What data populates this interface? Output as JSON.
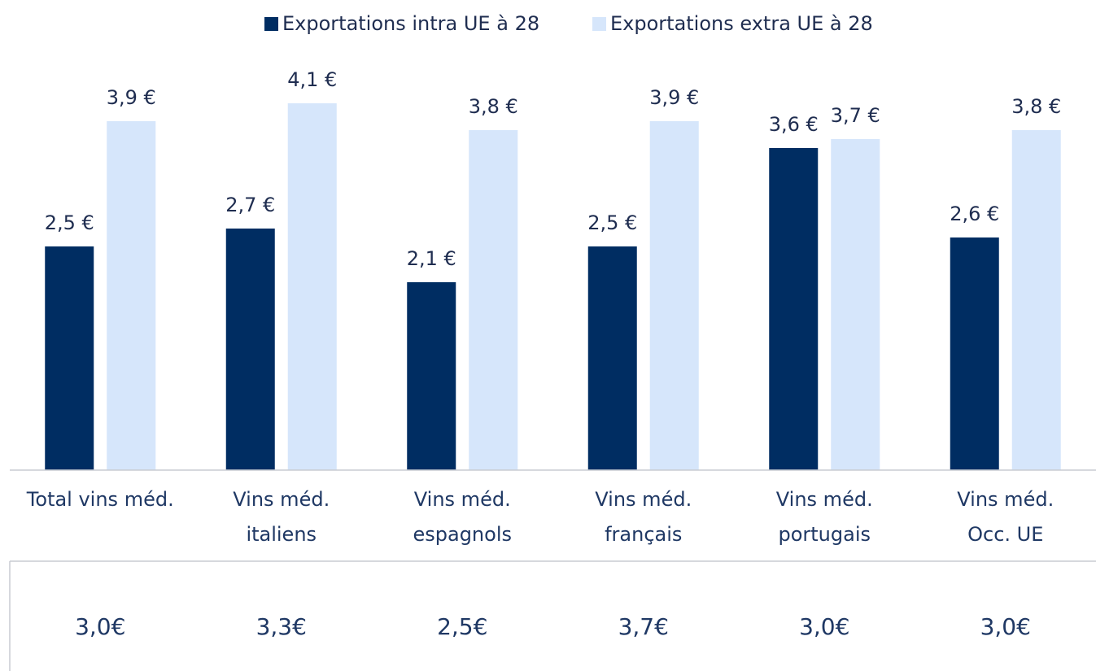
{
  "chart_data": {
    "type": "bar",
    "categories": [
      "Total vins méd.",
      "Vins méd.\nitaliens",
      "Vins méd.\nespagnols",
      "Vins méd.\nfrançais",
      "Vins méd.\nportugais",
      "Vins méd.\nOcc. UE"
    ],
    "series": [
      {
        "name": "Exportations intra UE à 28",
        "color": "#002d62",
        "values": [
          2.5,
          2.7,
          2.1,
          2.5,
          3.6,
          2.6
        ],
        "value_labels": [
          "2,5 €",
          "2,7 €",
          "2,1 €",
          "2,5 €",
          "3,6 €",
          "2,6 €"
        ]
      },
      {
        "name": "Exportations extra UE à 28",
        "color": "#d6e6fb",
        "values": [
          3.9,
          4.1,
          3.8,
          3.9,
          3.7,
          3.8
        ],
        "value_labels": [
          "3,9 €",
          "4,1 €",
          "3,8 €",
          "3,9 €",
          "3,7 €",
          "3,8 €"
        ]
      }
    ],
    "ylim": [
      0,
      5
    ],
    "table_row": [
      "3,0€",
      "3,3€",
      "2,5€",
      "3,7€",
      "3,0€",
      "3,0€"
    ]
  }
}
